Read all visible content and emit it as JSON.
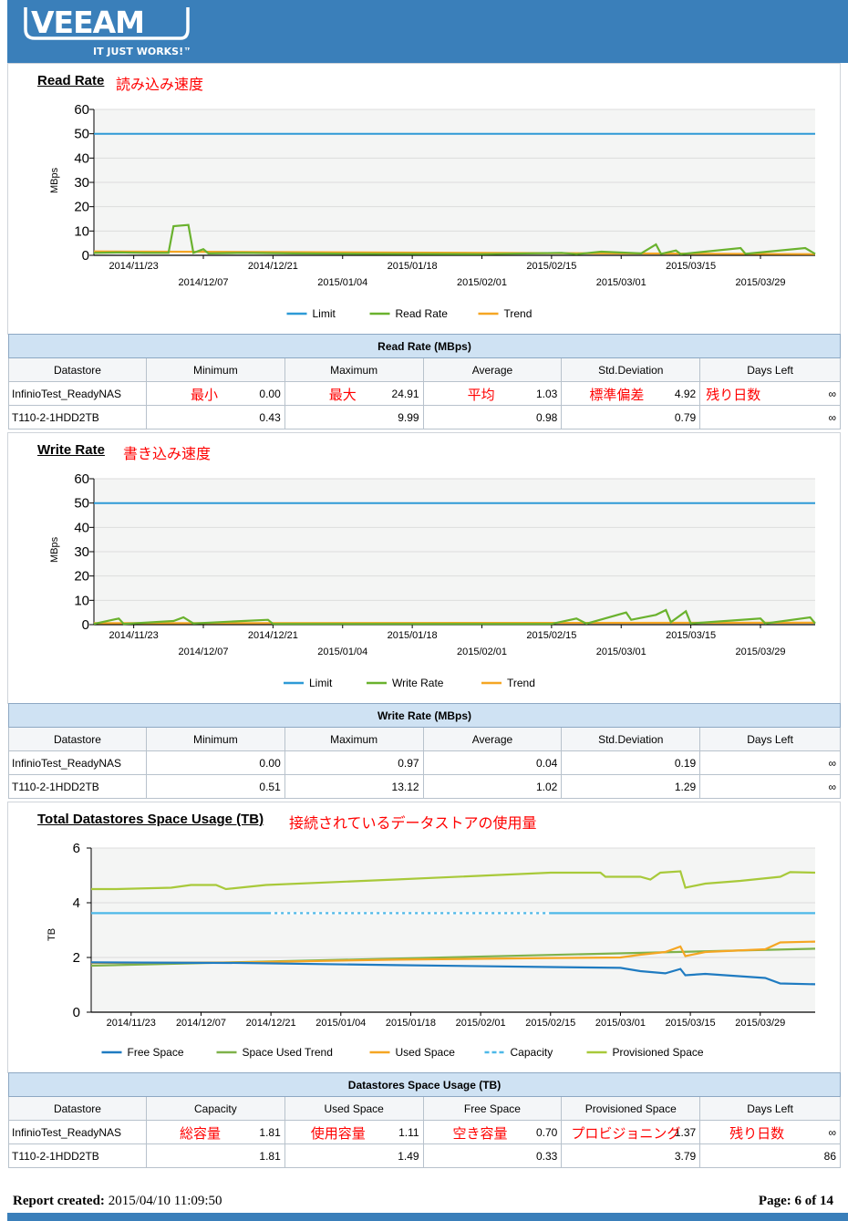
{
  "header": {
    "logo_text": "VEEAM",
    "tagline": "IT JUST WORKS!™",
    "brand_color": "#3a7fba"
  },
  "read_section": {
    "title": "Read Rate",
    "annotation": "読み込み速度"
  },
  "write_section": {
    "title": "Write Rate",
    "annotation": "書き込み速度"
  },
  "space_section": {
    "title": "Total Datastores Space Usage (TB)",
    "annotation": "接続されているデータストアの使用量"
  },
  "chart_data": [
    {
      "type": "line",
      "title": "Read Rate",
      "ylabel": "MBps",
      "ylim": [
        0,
        60
      ],
      "yticks": [
        "0",
        "10",
        "20",
        "30",
        "40",
        "50",
        "60"
      ],
      "xticks_row1": [
        "2014/11/23",
        "2014/12/21",
        "2015/01/18",
        "2015/02/15",
        "2015/03/15"
      ],
      "xticks_row2": [
        "2014/12/07",
        "2015/01/04",
        "2015/02/01",
        "2015/03/01",
        "2015/03/29"
      ],
      "x_start": "2014/11/15",
      "x_end": "2015/04/09",
      "legend": [
        "Limit",
        "Read Rate",
        "Trend"
      ],
      "legend_position": "bottom",
      "colors": {
        "Limit": "#2e9ad6",
        "Read Rate": "#6ab22e",
        "Trend": "#f5a623"
      },
      "series": [
        {
          "name": "Limit",
          "points": [
            [
              "2014/11/15",
              50
            ],
            [
              "2015/04/09",
              50
            ]
          ]
        },
        {
          "name": "Trend",
          "points": [
            [
              "2014/11/15",
              1.6
            ],
            [
              "2015/04/09",
              0.5
            ]
          ]
        },
        {
          "name": "Read Rate",
          "points": [
            [
              "2014/11/15",
              1
            ],
            [
              "2014/11/20",
              1.2
            ],
            [
              "2014/11/25",
              1
            ],
            [
              "2014/11/30",
              1
            ],
            [
              "2014/12/01",
              12
            ],
            [
              "2014/12/04",
              12.5
            ],
            [
              "2014/12/05",
              1
            ],
            [
              "2014/12/07",
              2.5
            ],
            [
              "2014/12/08",
              0.8
            ],
            [
              "2014/12/15",
              1
            ],
            [
              "2014/12/25",
              0.8
            ],
            [
              "2015/01/10",
              0.6
            ],
            [
              "2015/02/01",
              0.5
            ],
            [
              "2015/02/17",
              1
            ],
            [
              "2015/02/20",
              0.5
            ],
            [
              "2015/02/25",
              1.5
            ],
            [
              "2015/03/05",
              0.8
            ],
            [
              "2015/03/08",
              4.5
            ],
            [
              "2015/03/09",
              0.6
            ],
            [
              "2015/03/12",
              2
            ],
            [
              "2015/03/13",
              0.5
            ],
            [
              "2015/03/25",
              3
            ],
            [
              "2015/03/26",
              0.6
            ],
            [
              "2015/04/07",
              3
            ],
            [
              "2015/04/09",
              0.6
            ]
          ]
        }
      ]
    },
    {
      "type": "line",
      "title": "Write Rate",
      "ylabel": "MBps",
      "ylim": [
        0,
        60
      ],
      "yticks": [
        "0",
        "10",
        "20",
        "30",
        "40",
        "50",
        "60"
      ],
      "xticks_row1": [
        "2014/11/23",
        "2014/12/21",
        "2015/01/18",
        "2015/02/15",
        "2015/03/15"
      ],
      "xticks_row2": [
        "2014/12/07",
        "2015/01/04",
        "2015/02/01",
        "2015/03/01",
        "2015/03/29"
      ],
      "x_start": "2014/11/15",
      "x_end": "2015/04/09",
      "legend": [
        "Limit",
        "Write Rate",
        "Trend"
      ],
      "legend_position": "bottom",
      "colors": {
        "Limit": "#2e9ad6",
        "Write Rate": "#6ab22e",
        "Trend": "#f5a623"
      },
      "series": [
        {
          "name": "Limit",
          "points": [
            [
              "2014/11/15",
              50
            ],
            [
              "2015/04/09",
              50
            ]
          ]
        },
        {
          "name": "Trend",
          "points": [
            [
              "2014/11/15",
              0.6
            ],
            [
              "2015/04/09",
              0.8
            ]
          ]
        },
        {
          "name": "Write Rate",
          "points": [
            [
              "2014/11/15",
              0.3
            ],
            [
              "2014/11/20",
              2.5
            ],
            [
              "2014/11/21",
              0.3
            ],
            [
              "2014/12/01",
              1.5
            ],
            [
              "2014/12/03",
              3
            ],
            [
              "2014/12/05",
              0.5
            ],
            [
              "2014/12/15",
              1.5
            ],
            [
              "2014/12/20",
              2
            ],
            [
              "2014/12/21",
              0.3
            ],
            [
              "2015/02/15",
              0.3
            ],
            [
              "2015/02/20",
              2.5
            ],
            [
              "2015/02/22",
              0.4
            ],
            [
              "2015/03/02",
              5
            ],
            [
              "2015/03/03",
              2
            ],
            [
              "2015/03/08",
              4
            ],
            [
              "2015/03/10",
              6
            ],
            [
              "2015/03/11",
              1
            ],
            [
              "2015/03/14",
              5.5
            ],
            [
              "2015/03/15",
              0.5
            ],
            [
              "2015/03/29",
              2.5
            ],
            [
              "2015/03/30",
              0.5
            ],
            [
              "2015/04/08",
              3
            ],
            [
              "2015/04/09",
              0.5
            ]
          ]
        }
      ]
    },
    {
      "type": "line",
      "title": "Total Datastores Space Usage (TB)",
      "ylabel": "TB",
      "ylim": [
        0,
        6
      ],
      "yticks": [
        "0",
        "2",
        "4",
        "6"
      ],
      "xticks": [
        "2014/11/23",
        "2014/12/07",
        "2014/12/21",
        "2015/01/04",
        "2015/01/18",
        "2015/02/01",
        "2015/02/15",
        "2015/03/01",
        "2015/03/15",
        "2015/03/29"
      ],
      "x_start": "2014/11/15",
      "x_end": "2015/04/09",
      "legend": [
        "Free Space",
        "Space Used Trend",
        "Used Space",
        "Capacity",
        "Provisioned Space"
      ],
      "legend_position": "bottom",
      "colors": {
        "Free Space": "#1f7bc1",
        "Space Used Trend": "#7fb24a",
        "Used Space": "#f5a623",
        "Capacity": "#4db8e8",
        "Provisioned Space": "#a8c93a"
      },
      "series": [
        {
          "name": "Capacity",
          "points": [
            [
              "2014/11/15",
              3.62
            ],
            [
              "2015/04/09",
              3.62
            ]
          ]
        },
        {
          "name": "Provisioned Space",
          "points": [
            [
              "2014/11/15",
              4.5
            ],
            [
              "2014/11/20",
              4.5
            ],
            [
              "2014/12/01",
              4.55
            ],
            [
              "2014/12/05",
              4.65
            ],
            [
              "2014/12/10",
              4.65
            ],
            [
              "2014/12/12",
              4.5
            ],
            [
              "2014/12/20",
              4.65
            ],
            [
              "2015/01/15",
              4.85
            ],
            [
              "2015/02/15",
              5.1
            ],
            [
              "2015/02/25",
              5.1
            ],
            [
              "2015/02/26",
              4.95
            ],
            [
              "2015/03/05",
              4.95
            ],
            [
              "2015/03/07",
              4.85
            ],
            [
              "2015/03/09",
              5.1
            ],
            [
              "2015/03/13",
              5.15
            ],
            [
              "2015/03/14",
              4.55
            ],
            [
              "2015/03/18",
              4.7
            ],
            [
              "2015/03/25",
              4.8
            ],
            [
              "2015/04/02",
              4.95
            ],
            [
              "2015/04/04",
              5.12
            ],
            [
              "2015/04/09",
              5.1
            ]
          ]
        },
        {
          "name": "Space Used Trend",
          "points": [
            [
              "2014/11/15",
              1.7
            ],
            [
              "2015/04/09",
              2.32
            ]
          ]
        },
        {
          "name": "Used Space",
          "points": [
            [
              "2014/11/15",
              1.8
            ],
            [
              "2014/12/15",
              1.82
            ],
            [
              "2015/01/15",
              1.92
            ],
            [
              "2015/02/15",
              1.98
            ],
            [
              "2015/03/01",
              2.0
            ],
            [
              "2015/03/05",
              2.1
            ],
            [
              "2015/03/10",
              2.2
            ],
            [
              "2015/03/13",
              2.4
            ],
            [
              "2015/03/14",
              2.05
            ],
            [
              "2015/03/18",
              2.2
            ],
            [
              "2015/03/30",
              2.3
            ],
            [
              "2015/04/02",
              2.55
            ],
            [
              "2015/04/09",
              2.58
            ]
          ]
        },
        {
          "name": "Free Space",
          "points": [
            [
              "2014/11/15",
              1.82
            ],
            [
              "2014/12/15",
              1.8
            ],
            [
              "2015/01/15",
              1.72
            ],
            [
              "2015/02/15",
              1.65
            ],
            [
              "2015/03/01",
              1.62
            ],
            [
              "2015/03/05",
              1.5
            ],
            [
              "2015/03/10",
              1.42
            ],
            [
              "2015/03/13",
              1.58
            ],
            [
              "2015/03/14",
              1.35
            ],
            [
              "2015/03/18",
              1.4
            ],
            [
              "2015/03/30",
              1.25
            ],
            [
              "2015/04/02",
              1.05
            ],
            [
              "2015/04/09",
              1.02
            ]
          ]
        }
      ]
    }
  ],
  "read_table": {
    "caption": "Read Rate (MBps)",
    "columns": [
      "Datastore",
      "Minimum",
      "Maximum",
      "Average",
      "Std.Deviation",
      "Days Left"
    ],
    "annotations": [
      "最小",
      "最大",
      "平均",
      "標準偏差",
      "残り日数"
    ],
    "rows": [
      [
        "InfinioTest_ReadyNAS",
        "0.00",
        "24.91",
        "1.03",
        "4.92",
        "∞"
      ],
      [
        "T110-2-1HDD2TB",
        "0.43",
        "9.99",
        "0.98",
        "0.79",
        "∞"
      ]
    ]
  },
  "write_table": {
    "caption": "Write Rate (MBps)",
    "columns": [
      "Datastore",
      "Minimum",
      "Maximum",
      "Average",
      "Std.Deviation",
      "Days Left"
    ],
    "rows": [
      [
        "InfinioTest_ReadyNAS",
        "0.00",
        "0.97",
        "0.04",
        "0.19",
        "∞"
      ],
      [
        "T110-2-1HDD2TB",
        "0.51",
        "13.12",
        "1.02",
        "1.29",
        "∞"
      ]
    ]
  },
  "space_table": {
    "caption": "Datastores Space Usage (TB)",
    "columns": [
      "Datastore",
      "Capacity",
      "Used Space",
      "Free Space",
      "Provisioned Space",
      "Days Left"
    ],
    "annotations": [
      "総容量",
      "使用容量",
      "空き容量",
      "プロビジョニング",
      "残り日数"
    ],
    "rows": [
      [
        "InfinioTest_ReadyNAS",
        "1.81",
        "1.11",
        "0.70",
        "1.37",
        "∞"
      ],
      [
        "T110-2-1HDD2TB",
        "1.81",
        "1.49",
        "0.33",
        "3.79",
        "86"
      ]
    ]
  },
  "footer": {
    "report_label": "Report created:",
    "report_date": "2015/04/10 11:09:50",
    "page_label": "Page:",
    "page_current": "6",
    "page_of": "of",
    "page_total": "14"
  }
}
